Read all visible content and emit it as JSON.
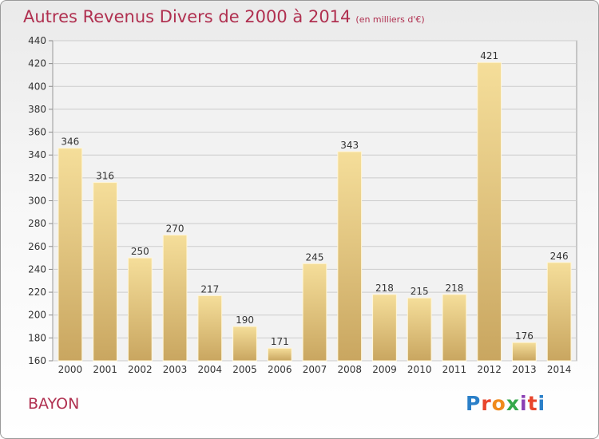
{
  "header": {
    "title": "Autres Revenus Divers de 2000 à 2014",
    "subtitle": "(en milliers d'€)"
  },
  "footer": {
    "place": "BAYON",
    "logo_text": "Proxiti",
    "logo_colors": [
      "#2a7fc8",
      "#e8452c",
      "#f08a1c",
      "#34a84a",
      "#8a3fb4",
      "#e8452c",
      "#2a7fc8"
    ]
  },
  "chart_data": {
    "type": "bar",
    "categories": [
      "2000",
      "2001",
      "2002",
      "2003",
      "2004",
      "2005",
      "2006",
      "2007",
      "2008",
      "2009",
      "2010",
      "2011",
      "2012",
      "2013",
      "2014"
    ],
    "values": [
      346,
      316,
      250,
      270,
      217,
      190,
      171,
      245,
      343,
      218,
      215,
      218,
      421,
      176,
      246
    ],
    "title": "Autres Revenus Divers de 2000 à 2014",
    "subtitle": "(en milliers d'€)",
    "xlabel": "",
    "ylabel": "",
    "ylim": [
      160,
      440
    ],
    "yticks": [
      160,
      180,
      200,
      220,
      240,
      260,
      280,
      300,
      320,
      340,
      360,
      380,
      400,
      420,
      440
    ],
    "grid": true,
    "data_labels": true,
    "bar_color": "#e4c47e"
  }
}
